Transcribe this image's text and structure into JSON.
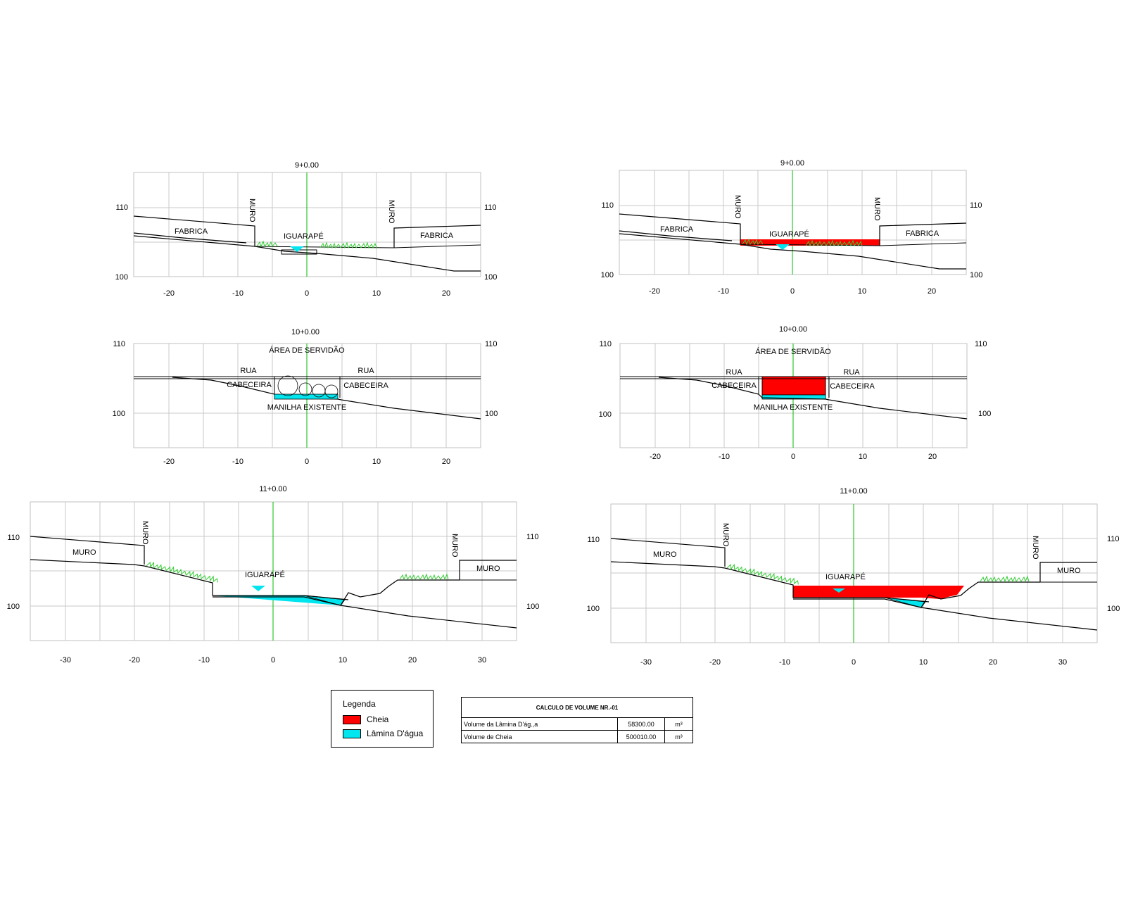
{
  "sections": [
    {
      "station": "9+0.00",
      "x_ticks": [
        "-20",
        "-10",
        "0",
        "10",
        "20"
      ],
      "y_ticks": [
        "110",
        "100"
      ],
      "labels": {
        "left_wall": "MURO",
        "right_wall": "MURO",
        "left_zone": "FABRICA",
        "right_zone": "FABRICA",
        "channel": "IGUARAPÉ"
      }
    },
    {
      "station": "9+0.00",
      "x_ticks": [
        "-20",
        "-10",
        "0",
        "10",
        "20"
      ],
      "y_ticks": [
        "110",
        "100"
      ],
      "labels": {
        "left_wall": "MURO",
        "right_wall": "MURO",
        "left_zone": "FABRICA",
        "right_zone": "FABRICA",
        "channel": "IGUARAPÉ"
      }
    },
    {
      "station": "10+0.00",
      "x_ticks": [
        "-20",
        "-10",
        "0",
        "10",
        "20"
      ],
      "y_ticks": [
        "110",
        "100"
      ],
      "labels": {
        "servitude": "ÁREA DE SERVIDÃO",
        "left_street": "RUA",
        "right_street": "RUA",
        "left_head": "CABECEIRA",
        "right_head": "CABECEIRA",
        "pipe": "MANILHA EXISTENTE"
      }
    },
    {
      "station": "10+0.00",
      "x_ticks": [
        "-20",
        "-10",
        "0",
        "10",
        "20"
      ],
      "y_ticks": [
        "110",
        "100"
      ],
      "labels": {
        "servitude": "ÁREA DE SERVIDÃO",
        "left_street": "RUA",
        "right_street": "RUA",
        "left_head": "CABECEIRA",
        "right_head": "CABECEIRA",
        "pipe": "MANILHA EXISTENTE"
      }
    },
    {
      "station": "11+0.00",
      "x_ticks": [
        "-30",
        "-20",
        "-10",
        "0",
        "10",
        "20",
        "30"
      ],
      "y_ticks": [
        "110",
        "100"
      ],
      "labels": {
        "left_wall": "MURO",
        "right_wall": "MURO",
        "left_zone": "MURO",
        "right_zone": "MURO",
        "channel": "IGUARAPÉ"
      }
    },
    {
      "station": "11+0.00",
      "x_ticks": [
        "-30",
        "-20",
        "-10",
        "0",
        "10",
        "20",
        "30"
      ],
      "y_ticks": [
        "110",
        "100"
      ],
      "labels": {
        "left_wall": "MURO",
        "right_wall": "MURO",
        "left_zone": "MURO",
        "right_zone": "MURO",
        "channel": "IGUARAPÉ"
      }
    }
  ],
  "legend": {
    "title": "Legenda",
    "items": [
      {
        "label": "Cheia",
        "color": "#ff0000"
      },
      {
        "label": "Lâmina D'água",
        "color": "#00e5ee"
      }
    ]
  },
  "volume_table": {
    "title": "CALCULO DE VOLUME    NR.-01",
    "rows": [
      {
        "name": "Volume da Lâmina D'ág.,a",
        "value": "58300.00",
        "unit": "m³"
      },
      {
        "name": "Volume de Cheia",
        "value": "500010.00",
        "unit": "m³"
      }
    ]
  },
  "colors": {
    "flood": "#ff0000",
    "water": "#00e5ee",
    "vegetation": "#33cc33",
    "centerline": "#00bb00",
    "grid": "#c8c8c8"
  }
}
